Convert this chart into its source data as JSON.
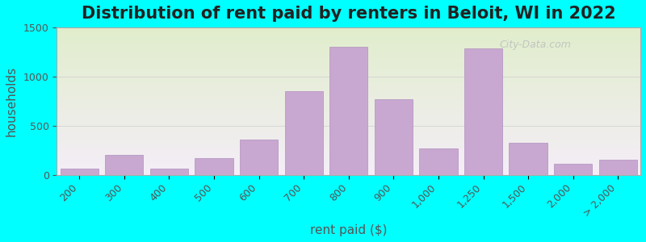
{
  "title": "Distribution of rent paid by renters in Beloit, WI in 2022",
  "xlabel": "rent paid ($)",
  "ylabel": "households",
  "background_outer": "#00FFFF",
  "background_inner_top": "#e8f0d0",
  "background_inner_bottom": "#f0e8f0",
  "bar_color": "#c8a8d0",
  "bar_edge_color": "#b090c0",
  "categories": [
    "200",
    "300",
    "400",
    "500",
    "600",
    "700",
    "800",
    "900",
    "1,000",
    "1,250",
    "1,500",
    "2,000",
    "> 2,000"
  ],
  "values": [
    60,
    200,
    65,
    170,
    360,
    850,
    1300,
    770,
    265,
    1290,
    325,
    115,
    155
  ],
  "ylim": [
    0,
    1500
  ],
  "yticks": [
    0,
    500,
    1000,
    1500
  ],
  "title_fontsize": 15,
  "axis_label_fontsize": 11,
  "tick_fontsize": 9,
  "watermark": "City-Data.com"
}
